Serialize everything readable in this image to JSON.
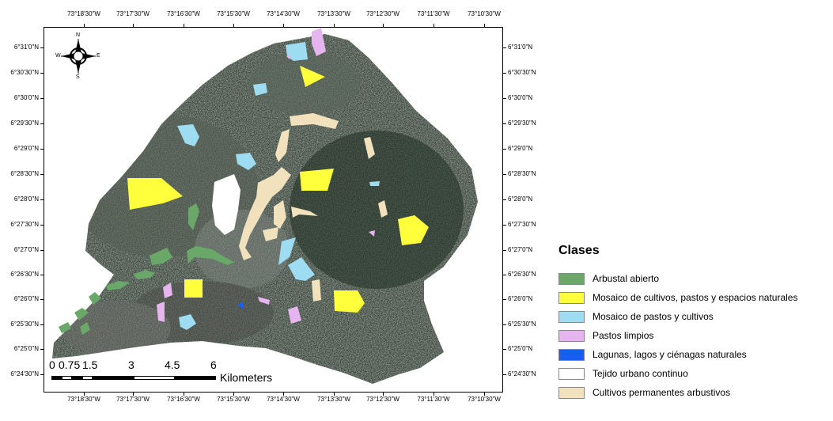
{
  "map": {
    "top_coords": [
      "73°18'30\"W",
      "73°17'30\"W",
      "73°16'30\"W",
      "73°15'30\"W",
      "73°14'30\"W",
      "73°13'30\"W",
      "73°12'30\"W",
      "73°11'30\"W",
      "73°10'30\"W"
    ],
    "bottom_coords": [
      "73°18'30\"W",
      "73°17'30\"W",
      "73°16'30\"W",
      "73°15'30\"W",
      "73°14'30\"W",
      "73°13'30\"W",
      "73°12'30\"W",
      "73°11'30\"W",
      "73°10'30\"W"
    ],
    "left_coords": [
      "6°31'0\"N",
      "6°30'30\"N",
      "6°30'0\"N",
      "6°29'30\"N",
      "6°29'0\"N",
      "6°28'30\"N",
      "6°28'0\"N",
      "6°27'30\"N",
      "6°27'0\"N",
      "6°26'30\"N",
      "6°26'0\"N",
      "6°25'30\"N",
      "6°25'0\"N",
      "6°24'30\"N"
    ],
    "right_coords": [
      "6°31'0\"N",
      "6°30'30\"N",
      "6°30'0\"N",
      "6°29'30\"N",
      "6°29'0\"N",
      "6°28'30\"N",
      "6°28'0\"N",
      "6°27'30\"N",
      "6°27'0\"N",
      "6°26'30\"N",
      "6°26'0\"N",
      "6°25'30\"N",
      "6°25'0\"N",
      "6°24'30\"N"
    ],
    "compass": {
      "n": "N",
      "s": "S",
      "e": "E",
      "w": "W"
    },
    "scale": {
      "labels": [
        "0",
        "0.75",
        "1.5",
        "3",
        "4.5",
        "6"
      ],
      "unit": "Kilometers"
    }
  },
  "legend": {
    "title": "Clases",
    "items": [
      {
        "label": "Arbustal abierto",
        "color": "#6aa86a"
      },
      {
        "label": "Mosaico de cultivos, pastos y espacios naturales",
        "color": "#ffff3c"
      },
      {
        "label": "Mosaico de pastos y cultivos",
        "color": "#9edcf2"
      },
      {
        "label": "Pastos limpios",
        "color": "#e6b4ee"
      },
      {
        "label": "Lagunas, lagos y ciénagas naturales",
        "color": "#1560ee"
      },
      {
        "label": "Tejido urbano continuo",
        "color": "#ffffff"
      },
      {
        "label": "Cultivos permanentes arbustivos",
        "color": "#f1e2bd"
      }
    ]
  }
}
